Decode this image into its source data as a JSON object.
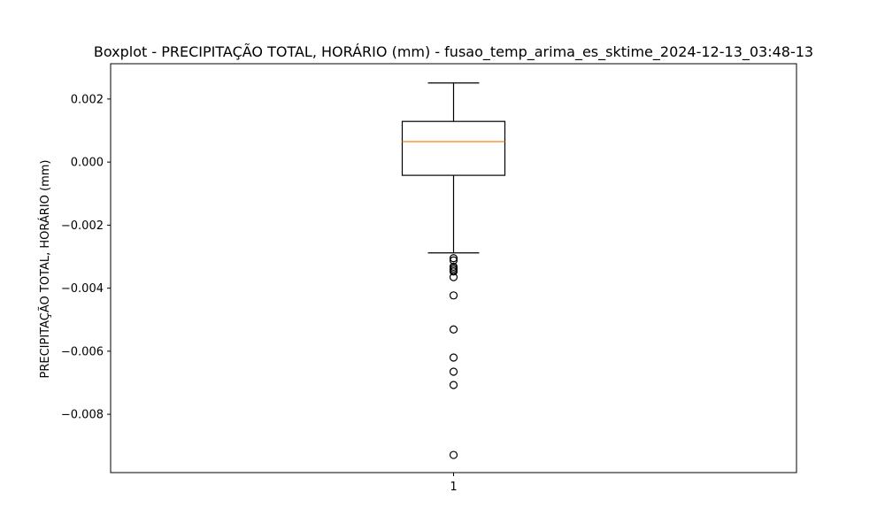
{
  "chart_data": {
    "type": "boxplot",
    "title": "Boxplot - PRECIPITAÇÃO TOTAL, HORÁRIO (mm) - fusao_temp_arima_es_sktime_2024-12-13_03:48-13",
    "xlabel": "",
    "ylabel": "PRECIPITAÇÃO TOTAL, HORÁRIO (mm)",
    "categories": [
      "1"
    ],
    "ylim": [
      -0.00985,
      0.00312
    ],
    "yticks": [
      0.002,
      0.0,
      -0.002,
      -0.004,
      -0.006,
      -0.008
    ],
    "ytick_labels": [
      "0.002",
      "0.000",
      "−0.002",
      "−0.004",
      "−0.006",
      "−0.008"
    ],
    "grid": false,
    "box": {
      "whisker_low": -0.00288,
      "q1": -0.00042,
      "median": 0.00065,
      "q3": 0.00129,
      "whisker_high": 0.00251
    },
    "outliers": [
      -0.00305,
      -0.00312,
      -0.00332,
      -0.00337,
      -0.00342,
      -0.00347,
      -0.00365,
      -0.00423,
      -0.00531,
      -0.0062,
      -0.00665,
      -0.00707,
      -0.00929
    ],
    "colors": {
      "box": "#000000",
      "median": "#ff7f0e",
      "outlier": "#000000"
    }
  }
}
